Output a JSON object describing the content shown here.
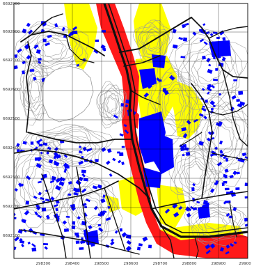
{
  "map": {
    "y_ticks": [
      "6692900",
      "6692800",
      "6692700",
      "6692600",
      "6692500",
      "6692400",
      "6692300",
      "6692200",
      "6692100"
    ],
    "x_ticks": [
      "298300",
      "298400",
      "298500",
      "298600",
      "298700",
      "298800",
      "298900",
      "29900"
    ],
    "colors": {
      "hazard_red": "#ff1a1a",
      "hazard_yellow": "#ffff00",
      "building": "#0000ff",
      "road": "#111111",
      "contour": "#9a9a9a",
      "frame": "#000000",
      "grid": "#000000"
    }
  }
}
